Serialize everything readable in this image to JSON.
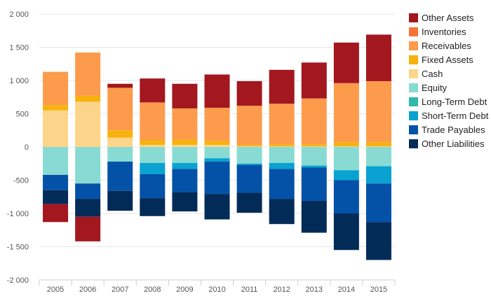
{
  "chart_data": {
    "type": "bar",
    "stacked": true,
    "categories": [
      "2005",
      "2006",
      "2007",
      "2008",
      "2009",
      "2010",
      "2011",
      "2012",
      "2013",
      "2014",
      "2015"
    ],
    "ylim": [
      -2000,
      2000
    ],
    "yticks": [
      -2000,
      -1500,
      -1000,
      -500,
      0,
      500,
      1000,
      1500,
      2000
    ],
    "ytick_labels": [
      "-2 000",
      "-1 500",
      "-1 000",
      "-500",
      "0",
      "500",
      "1 000",
      "1 500",
      "2 000"
    ],
    "grid": true,
    "legend_position": "right",
    "legend": [
      "Other Assets",
      "Inventories",
      "Receivables",
      "Fixed Assets",
      "Cash",
      "Equity",
      "Long-Term Debt",
      "Short-Term Debt",
      "Trade Payables",
      "Other Liabilities"
    ],
    "series": [
      {
        "name": "Cash",
        "color": "#fdd58a",
        "values": [
          550,
          680,
          140,
          30,
          30,
          30,
          10,
          10,
          10,
          10,
          10
        ]
      },
      {
        "name": "Fixed Assets",
        "color": "#f8b20e",
        "values": [
          80,
          90,
          110,
          70,
          80,
          60,
          20,
          30,
          30,
          60,
          60
        ]
      },
      {
        "name": "Receivables",
        "color": "#fd9b4c",
        "values": [
          500,
          650,
          640,
          570,
          470,
          500,
          590,
          610,
          690,
          890,
          920
        ]
      },
      {
        "name": "Inventories",
        "color": "#f87336",
        "values": [
          0,
          0,
          0,
          0,
          0,
          0,
          0,
          0,
          0,
          0,
          0
        ]
      },
      {
        "name": "Other Assets",
        "color": "#a3171f",
        "values": [
          0,
          0,
          60,
          360,
          370,
          500,
          370,
          510,
          540,
          610,
          700
        ]
      },
      {
        "name": "Equity",
        "color": "#88dbd3",
        "values": [
          -420,
          -550,
          -220,
          -240,
          -240,
          -170,
          -250,
          -240,
          -280,
          -350,
          -290
        ]
      },
      {
        "name": "Long-Term Debt",
        "color": "#2fb9a8",
        "values": [
          0,
          0,
          0,
          0,
          0,
          0,
          0,
          0,
          0,
          0,
          0
        ]
      },
      {
        "name": "Short-Term Debt",
        "color": "#0aa2d0",
        "values": [
          0,
          0,
          0,
          -170,
          -90,
          -50,
          -20,
          -90,
          -30,
          -150,
          -260
        ]
      },
      {
        "name": "Trade Payables",
        "color": "#0452a8",
        "values": [
          -230,
          -230,
          -440,
          -360,
          -350,
          -490,
          -420,
          -450,
          -500,
          -500,
          -580
        ]
      },
      {
        "name": "Other Liabilities",
        "color": "#032b57",
        "values": [
          -210,
          -270,
          -300,
          -270,
          -290,
          -380,
          -300,
          -380,
          -480,
          -550,
          -570
        ]
      },
      {
        "name": "Other Assets (lower)",
        "color": "#a3171f",
        "values": [
          -270,
          -370,
          0,
          0,
          0,
          0,
          0,
          0,
          0,
          0,
          0
        ],
        "legend": false
      }
    ]
  }
}
